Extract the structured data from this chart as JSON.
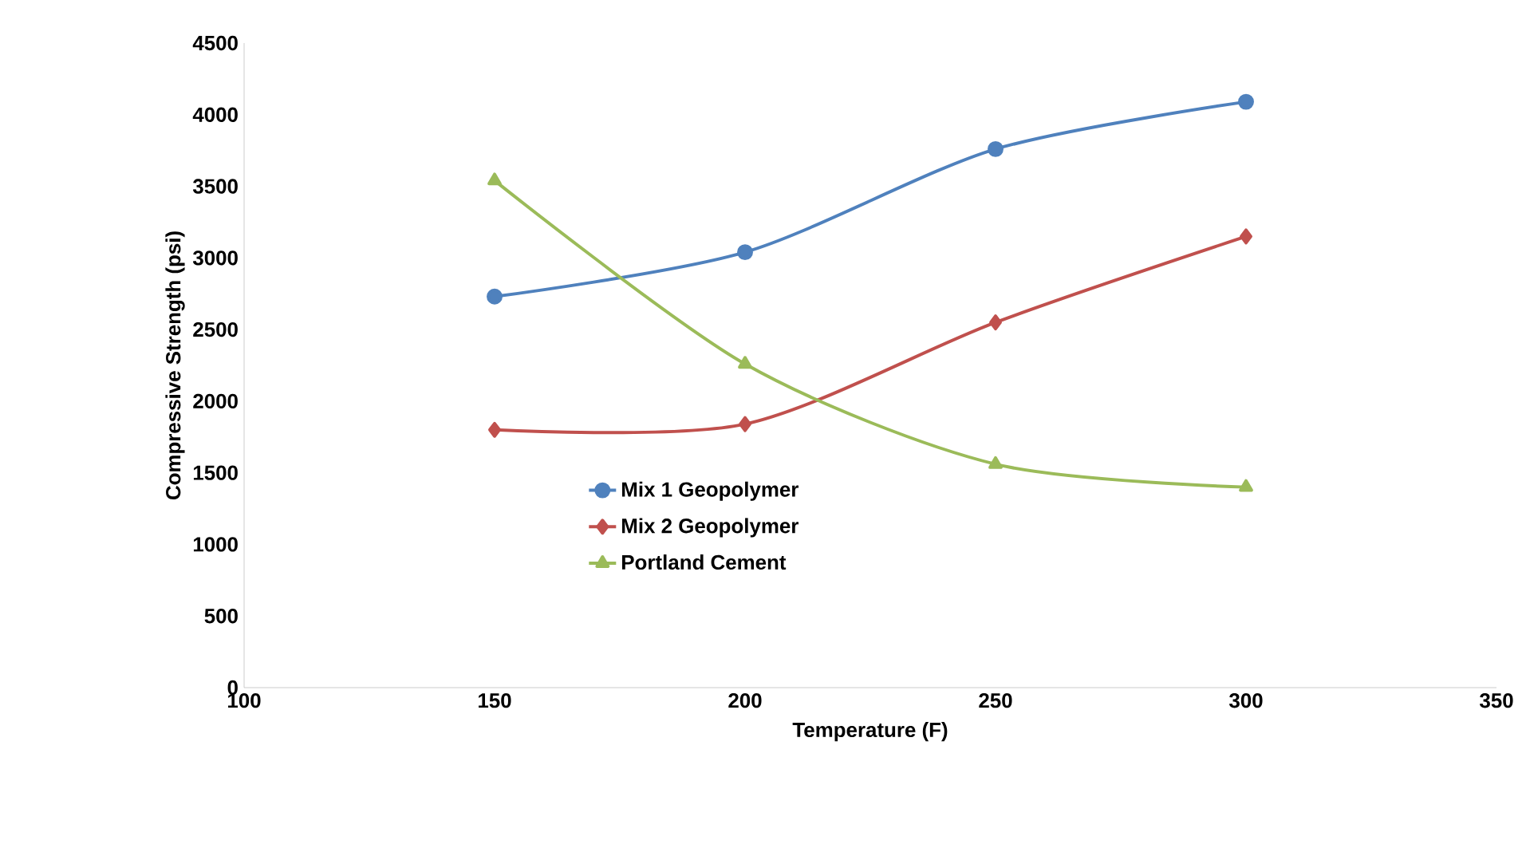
{
  "chart_data": {
    "type": "line",
    "xlabel": "Temperature (F)",
    "ylabel": "Compressive Strength (psi)",
    "x": [
      150,
      200,
      250,
      300
    ],
    "series": [
      {
        "name": "Mix 1 Geopolymer",
        "color": "#4f81bd",
        "marker": "circle",
        "values": [
          2730,
          3040,
          3760,
          4090
        ]
      },
      {
        "name": "Mix 2 Geopolymer",
        "color": "#c0504d",
        "marker": "diamond",
        "values": [
          1800,
          1840,
          2550,
          3150
        ]
      },
      {
        "name": "Portland Cement",
        "color": "#9bbb59",
        "marker": "triangle",
        "values": [
          3540,
          2260,
          1560,
          1400
        ]
      }
    ],
    "xlim": [
      100,
      350
    ],
    "xticks": [
      100,
      150,
      200,
      250,
      300,
      350
    ],
    "ylim": [
      0,
      4500
    ],
    "yticks": [
      0,
      500,
      1000,
      1500,
      2000,
      2500,
      3000,
      3500,
      4000,
      4500
    ],
    "grid": false,
    "legend": "bottom",
    "line_style": "solid"
  }
}
